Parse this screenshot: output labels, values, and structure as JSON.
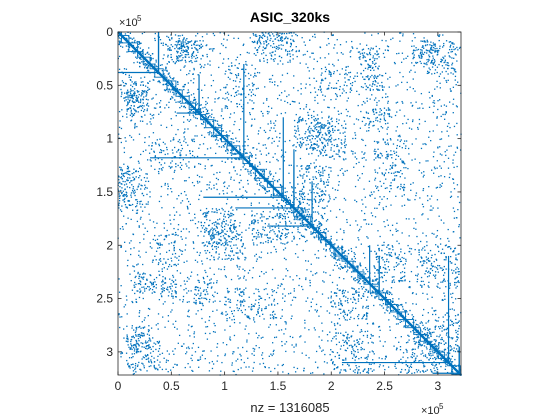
{
  "chart_data": {
    "type": "scatter",
    "title": "ASIC_320ks",
    "xlabel": "nz = 1316085",
    "ylabel": "",
    "matrix_size": 321671,
    "xlim": [
      0,
      321671
    ],
    "ylim": [
      0,
      321671
    ],
    "y_direction": "reversed",
    "x_ticks": [
      0,
      50000,
      100000,
      150000,
      200000,
      250000,
      300000
    ],
    "x_tick_labels": [
      "0",
      "0.5",
      "1",
      "1.5",
      "2",
      "2.5",
      "3"
    ],
    "y_ticks": [
      0,
      50000,
      100000,
      150000,
      200000,
      250000,
      300000
    ],
    "y_tick_labels": [
      "0",
      "0.5",
      "1",
      "1.5",
      "2",
      "2.5",
      "3"
    ],
    "x_exponent": {
      "base": "×10",
      "power": "5"
    },
    "y_exponent": {
      "base": "×10",
      "power": "5"
    },
    "marker_color": "#0072bd",
    "grid": false,
    "legend": "none",
    "diagonal": [
      0,
      321671
    ],
    "dense_blocks": [
      {
        "rows": [
          8000,
          28000
        ],
        "cols": [
          55000,
          80000
        ],
        "density": 0.55
      },
      {
        "rows": [
          45000,
          65000
        ],
        "cols": [
          2000,
          30000
        ],
        "density": 0.5
      },
      {
        "rows": [
          55000,
          75000
        ],
        "cols": [
          8000,
          28000
        ],
        "density": 0.5
      },
      {
        "rows": [
          40000,
          55000
        ],
        "cols": [
          228000,
          250000
        ],
        "density": 0.6
      },
      {
        "rows": [
          10000,
          40000
        ],
        "cols": [
          285000,
          318000
        ],
        "density": 0.45
      },
      {
        "rows": [
          0,
          30000
        ],
        "cols": [
          130000,
          165000
        ],
        "density": 0.35
      },
      {
        "rows": [
          125000,
          165000
        ],
        "cols": [
          0,
          12000
        ],
        "density": 0.45
      },
      {
        "rows": [
          165000,
          200000
        ],
        "cols": [
          80000,
          110000
        ],
        "density": 0.45
      },
      {
        "rows": [
          125000,
          160000
        ],
        "cols": [
          170000,
          200000
        ],
        "density": 0.4
      },
      {
        "rows": [
          225000,
          245000
        ],
        "cols": [
          15000,
          40000
        ],
        "density": 0.5
      },
      {
        "rows": [
          275000,
          300000
        ],
        "cols": [
          8000,
          30000
        ],
        "density": 0.5
      },
      {
        "rows": [
          200000,
          235000
        ],
        "cols": [
          240000,
          270000
        ],
        "density": 0.4
      },
      {
        "rows": [
          80000,
          120000
        ],
        "cols": [
          180000,
          215000
        ],
        "density": 0.4
      },
      {
        "rows": [
          230000,
          255000
        ],
        "cols": [
          60000,
          90000
        ],
        "density": 0.35
      },
      {
        "rows": [
          280000,
          320000
        ],
        "cols": [
          200000,
          240000
        ],
        "density": 0.35
      },
      {
        "rows": [
          165000,
          195000
        ],
        "cols": [
          150000,
          175000
        ],
        "density": 0.3
      },
      {
        "rows": [
          100000,
          150000
        ],
        "cols": [
          240000,
          270000
        ],
        "density": 0.3
      },
      {
        "rows": [
          270000,
          300000
        ],
        "cols": [
          290000,
          320000
        ],
        "density": 0.45
      },
      {
        "rows": [
          100000,
          130000
        ],
        "cols": [
          30000,
          70000
        ],
        "density": 0.25
      },
      {
        "rows": [
          190000,
          220000
        ],
        "cols": [
          30000,
          60000
        ],
        "density": 0.25
      }
    ],
    "row_lines": [
      {
        "row": 38000,
        "cols": [
          0,
          38000
        ]
      },
      {
        "row": 76000,
        "cols": [
          55000,
          76000
        ]
      },
      {
        "row": 118000,
        "cols": [
          30000,
          118000
        ]
      },
      {
        "row": 155000,
        "cols": [
          80000,
          155000
        ]
      },
      {
        "row": 165000,
        "cols": [
          110000,
          165000
        ]
      },
      {
        "row": 182000,
        "cols": [
          140000,
          182000
        ]
      },
      {
        "row": 310000,
        "cols": [
          210000,
          310000
        ]
      },
      {
        "row": 320000,
        "cols": [
          295000,
          321000
        ]
      }
    ],
    "col_lines": [
      {
        "col": 38000,
        "rows": [
          0,
          38000
        ]
      },
      {
        "col": 76000,
        "rows": [
          40000,
          76000
        ]
      },
      {
        "col": 165000,
        "rows": [
          125000,
          165000
        ]
      },
      {
        "col": 236000,
        "rows": [
          200000,
          236000
        ]
      },
      {
        "col": 245000,
        "rows": [
          210000,
          245000
        ]
      },
      {
        "col": 320000,
        "rows": [
          295000,
          321000
        ]
      }
    ]
  }
}
